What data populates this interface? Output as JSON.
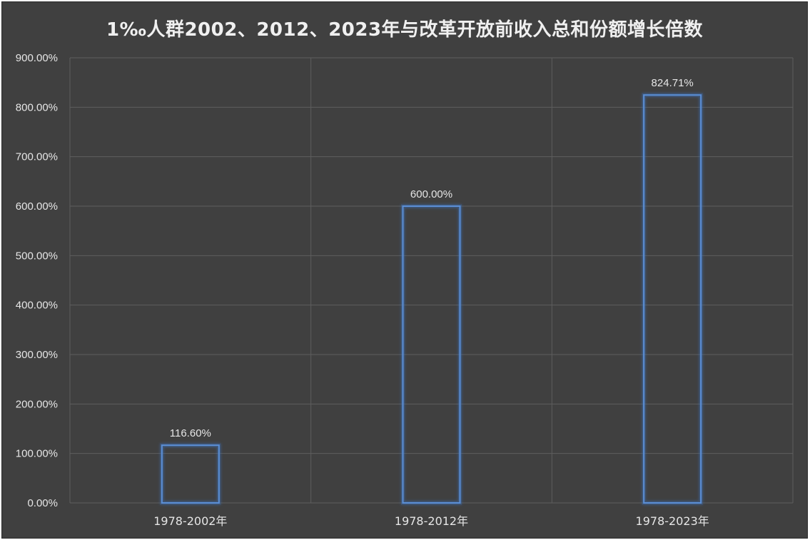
{
  "chart_data": {
    "type": "bar",
    "title": "1‰人群2002、2012、2023年与改革开放前收入总和份额增长倍数",
    "categories": [
      "1978-2002年",
      "1978-2012年",
      "1978-2023年"
    ],
    "values": [
      116.6,
      600.0,
      824.71
    ],
    "data_labels": [
      "116.60%",
      "600.00%",
      "824.71%"
    ],
    "y_ticks": [
      "0.00%",
      "100.00%",
      "200.00%",
      "300.00%",
      "400.00%",
      "500.00%",
      "600.00%",
      "700.00%",
      "800.00%",
      "900.00%"
    ],
    "ylim": [
      0,
      900
    ],
    "grid": true,
    "legend": "none",
    "colors": {
      "background": "#404040",
      "bar_outline": "#5b8fd6",
      "bar_glow": "#3d6fb8",
      "gridline": "#5e5e5e",
      "text": "#e6e6e6"
    }
  }
}
